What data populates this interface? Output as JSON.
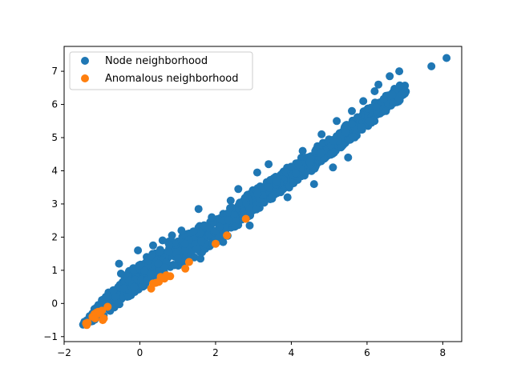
{
  "chart_data": {
    "type": "scatter",
    "title": "",
    "xlabel": "",
    "ylabel": "",
    "xlim": [
      -2.0,
      8.5
    ],
    "ylim": [
      -1.15,
      7.75
    ],
    "xticks": [
      -2,
      0,
      2,
      4,
      6,
      8
    ],
    "yticks": [
      -1,
      0,
      1,
      2,
      3,
      4,
      5,
      6,
      7
    ],
    "grid": false,
    "legend_position": "top-left",
    "series": [
      {
        "name": "Node neighborhood",
        "color": "#1f77b4",
        "band": [
          [
            -1.45,
            -0.62
          ],
          [
            -1.2,
            -0.35
          ],
          [
            -0.8,
            0.05
          ],
          [
            -0.2,
            0.65
          ],
          [
            0.5,
            1.25
          ],
          [
            1.2,
            1.7
          ],
          [
            2.0,
            2.15
          ],
          [
            3.0,
            3.1
          ],
          [
            4.0,
            3.85
          ],
          [
            5.0,
            4.7
          ],
          [
            6.0,
            5.6
          ],
          [
            7.0,
            6.5
          ]
        ],
        "band_width": [
          0.08,
          0.3,
          0.55,
          0.8,
          0.9,
          0.85,
          0.8,
          0.7,
          0.6,
          0.55,
          0.5,
          0.4
        ],
        "points": [
          [
            -1.45,
            -0.62
          ],
          [
            -1.35,
            -0.5
          ],
          [
            -1.25,
            -0.38
          ],
          [
            7.7,
            7.15
          ],
          [
            8.1,
            7.4
          ],
          [
            6.85,
            7.0
          ],
          [
            6.6,
            6.85
          ],
          [
            6.5,
            5.8
          ],
          [
            6.3,
            6.6
          ],
          [
            -0.55,
            1.2
          ],
          [
            1.55,
            2.85
          ],
          [
            0.85,
            2.05
          ],
          [
            0.35,
            1.75
          ],
          [
            -0.05,
            1.6
          ],
          [
            2.6,
            3.45
          ],
          [
            3.4,
            4.2
          ],
          [
            3.1,
            3.95
          ],
          [
            4.3,
            4.6
          ],
          [
            4.8,
            5.1
          ],
          [
            5.2,
            5.5
          ],
          [
            5.6,
            5.8
          ],
          [
            5.9,
            6.1
          ],
          [
            6.2,
            6.4
          ],
          [
            2.4,
            3.1
          ],
          [
            1.9,
            2.6
          ],
          [
            1.1,
            2.2
          ],
          [
            0.6,
            1.9
          ],
          [
            -1.0,
            -0.05
          ],
          [
            -0.9,
            0.2
          ],
          [
            -0.7,
            0.4
          ],
          [
            -0.5,
            0.9
          ],
          [
            4.6,
            3.6
          ],
          [
            3.9,
            3.2
          ],
          [
            5.1,
            4.1
          ],
          [
            5.5,
            4.4
          ],
          [
            2.9,
            2.35
          ],
          [
            2.2,
            1.85
          ],
          [
            1.6,
            1.35
          ]
        ]
      },
      {
        "name": "Anomalous neighborhood",
        "color": "#ff7f0e",
        "points": [
          [
            -1.42,
            -0.6
          ],
          [
            -1.38,
            -0.58
          ],
          [
            -1.4,
            -0.65
          ],
          [
            -1.25,
            -0.4
          ],
          [
            -1.2,
            -0.32
          ],
          [
            -1.18,
            -0.45
          ],
          [
            -1.15,
            -0.28
          ],
          [
            -1.1,
            -0.25
          ],
          [
            -1.05,
            -0.3
          ],
          [
            -1.0,
            -0.22
          ],
          [
            -0.98,
            -0.5
          ],
          [
            -0.95,
            -0.45
          ],
          [
            -0.85,
            -0.1
          ],
          [
            0.3,
            0.45
          ],
          [
            0.35,
            0.6
          ],
          [
            0.42,
            0.62
          ],
          [
            0.5,
            0.65
          ],
          [
            0.55,
            0.8
          ],
          [
            0.65,
            0.75
          ],
          [
            0.7,
            0.85
          ],
          [
            0.8,
            0.82
          ],
          [
            1.2,
            1.05
          ],
          [
            1.3,
            1.25
          ],
          [
            2.0,
            1.8
          ],
          [
            2.3,
            2.05
          ],
          [
            2.8,
            2.55
          ]
        ]
      }
    ]
  }
}
